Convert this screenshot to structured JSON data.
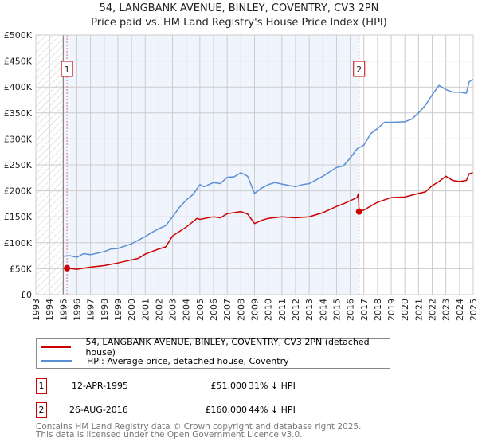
{
  "chart_data": {
    "type": "line",
    "title": "54, LANGBANK AVENUE, BINLEY, COVENTRY, CV3 2PN",
    "subtitle": "Price paid vs. HM Land Registry's House Price Index (HPI)",
    "xlim": [
      1993,
      2025
    ],
    "ylim": [
      0,
      500000
    ],
    "x_ticks": [
      "1993",
      "1994",
      "1995",
      "1996",
      "1997",
      "1998",
      "1999",
      "2000",
      "2001",
      "2002",
      "2003",
      "2004",
      "2005",
      "2006",
      "2007",
      "2008",
      "2009",
      "2010",
      "2011",
      "2012",
      "2013",
      "2014",
      "2015",
      "2016",
      "2017",
      "2018",
      "2019",
      "2020",
      "2021",
      "2022",
      "2023",
      "2024",
      "2025"
    ],
    "y_ticks": [
      "£0",
      "£50K",
      "£100K",
      "£150K",
      "£200K",
      "£250K",
      "£300K",
      "£350K",
      "£400K",
      "£450K",
      "£500K"
    ],
    "grid": true,
    "series": [
      {
        "name": "54, LANGBANK AVENUE, BINLEY, COVENTRY, CV3 2PN (detached house)",
        "color": "#cc0000",
        "x": [
          1995.28,
          1996,
          1996.5,
          1997,
          1998,
          1999,
          2000,
          2000.5,
          2001,
          2002,
          2002.5,
          2003,
          2004,
          2004.8,
          2005,
          2006,
          2006.5,
          2007,
          2008,
          2008.5,
          2009,
          2009.5,
          2010,
          2011,
          2012,
          2013,
          2014,
          2015,
          2015.5,
          2016,
          2016.5,
          2016.6,
          2016.65,
          2017,
          2018,
          2019,
          2020,
          2021,
          2021.5,
          2022,
          2022.5,
          2023,
          2023.5,
          2024,
          2024.5,
          2024.7,
          2025
        ],
        "y": [
          51000,
          49000,
          51000,
          53000,
          56000,
          61000,
          67000,
          70000,
          78000,
          88000,
          92000,
          113000,
          130000,
          147000,
          145000,
          150000,
          148000,
          156000,
          160000,
          155000,
          137000,
          143000,
          147000,
          150000,
          148000,
          150000,
          158000,
          170000,
          175000,
          181000,
          187000,
          195000,
          160000,
          163000,
          178000,
          187000,
          188000,
          195000,
          198000,
          210000,
          218000,
          228000,
          220000,
          218000,
          220000,
          233000,
          235000
        ]
      },
      {
        "name": "HPI: Average price, detached house, Coventry",
        "color": "#5b8fd4",
        "x": [
          1995,
          1995.5,
          1996,
          1996.5,
          1997,
          1998,
          1998.5,
          1999,
          2000,
          2001,
          2001.5,
          2002,
          2002.5,
          2003,
          2003.5,
          2004,
          2004.5,
          2005,
          2005.3,
          2006,
          2006.5,
          2007,
          2007.5,
          2008,
          2008.5,
          2009,
          2009.5,
          2010,
          2010.5,
          2011,
          2012,
          2012.5,
          2013,
          2014,
          2015,
          2015.5,
          2016,
          2016.5,
          2017,
          2017.5,
          2018,
          2018.5,
          2019,
          2020,
          2020.5,
          2021,
          2021.5,
          2022,
          2022.5,
          2023,
          2023.5,
          2024,
          2024.5,
          2024.7,
          2025
        ],
        "y": [
          74000,
          75000,
          72000,
          79000,
          77000,
          83000,
          88000,
          89000,
          98000,
          112000,
          120000,
          127000,
          133000,
          150000,
          168000,
          182000,
          193000,
          212000,
          208000,
          216000,
          214000,
          226000,
          227000,
          235000,
          228000,
          195000,
          205000,
          212000,
          216000,
          213000,
          208000,
          212000,
          214000,
          228000,
          245000,
          248000,
          263000,
          281000,
          288000,
          310000,
          320000,
          332000,
          332000,
          333000,
          338000,
          350000,
          365000,
          385000,
          403000,
          395000,
          390000,
          390000,
          388000,
          410000,
          415000
        ]
      }
    ],
    "sales": [
      {
        "label": "1",
        "date": "12-APR-1995",
        "price": "£51,000",
        "hpi": "31% ↓ HPI",
        "x": 1995.28,
        "y": 51000
      },
      {
        "label": "2",
        "date": "26-AUG-2016",
        "price": "£160,000",
        "hpi": "44% ↓ HPI",
        "x": 2016.65,
        "y": 160000
      }
    ],
    "shaded_range": [
      1995,
      2016.65
    ],
    "hatched_range": [
      1993,
      1995
    ]
  },
  "footer": {
    "line1": "Contains HM Land Registry data © Crown copyright and database right 2025.",
    "line2": "This data is licensed under the Open Government Licence v3.0."
  }
}
